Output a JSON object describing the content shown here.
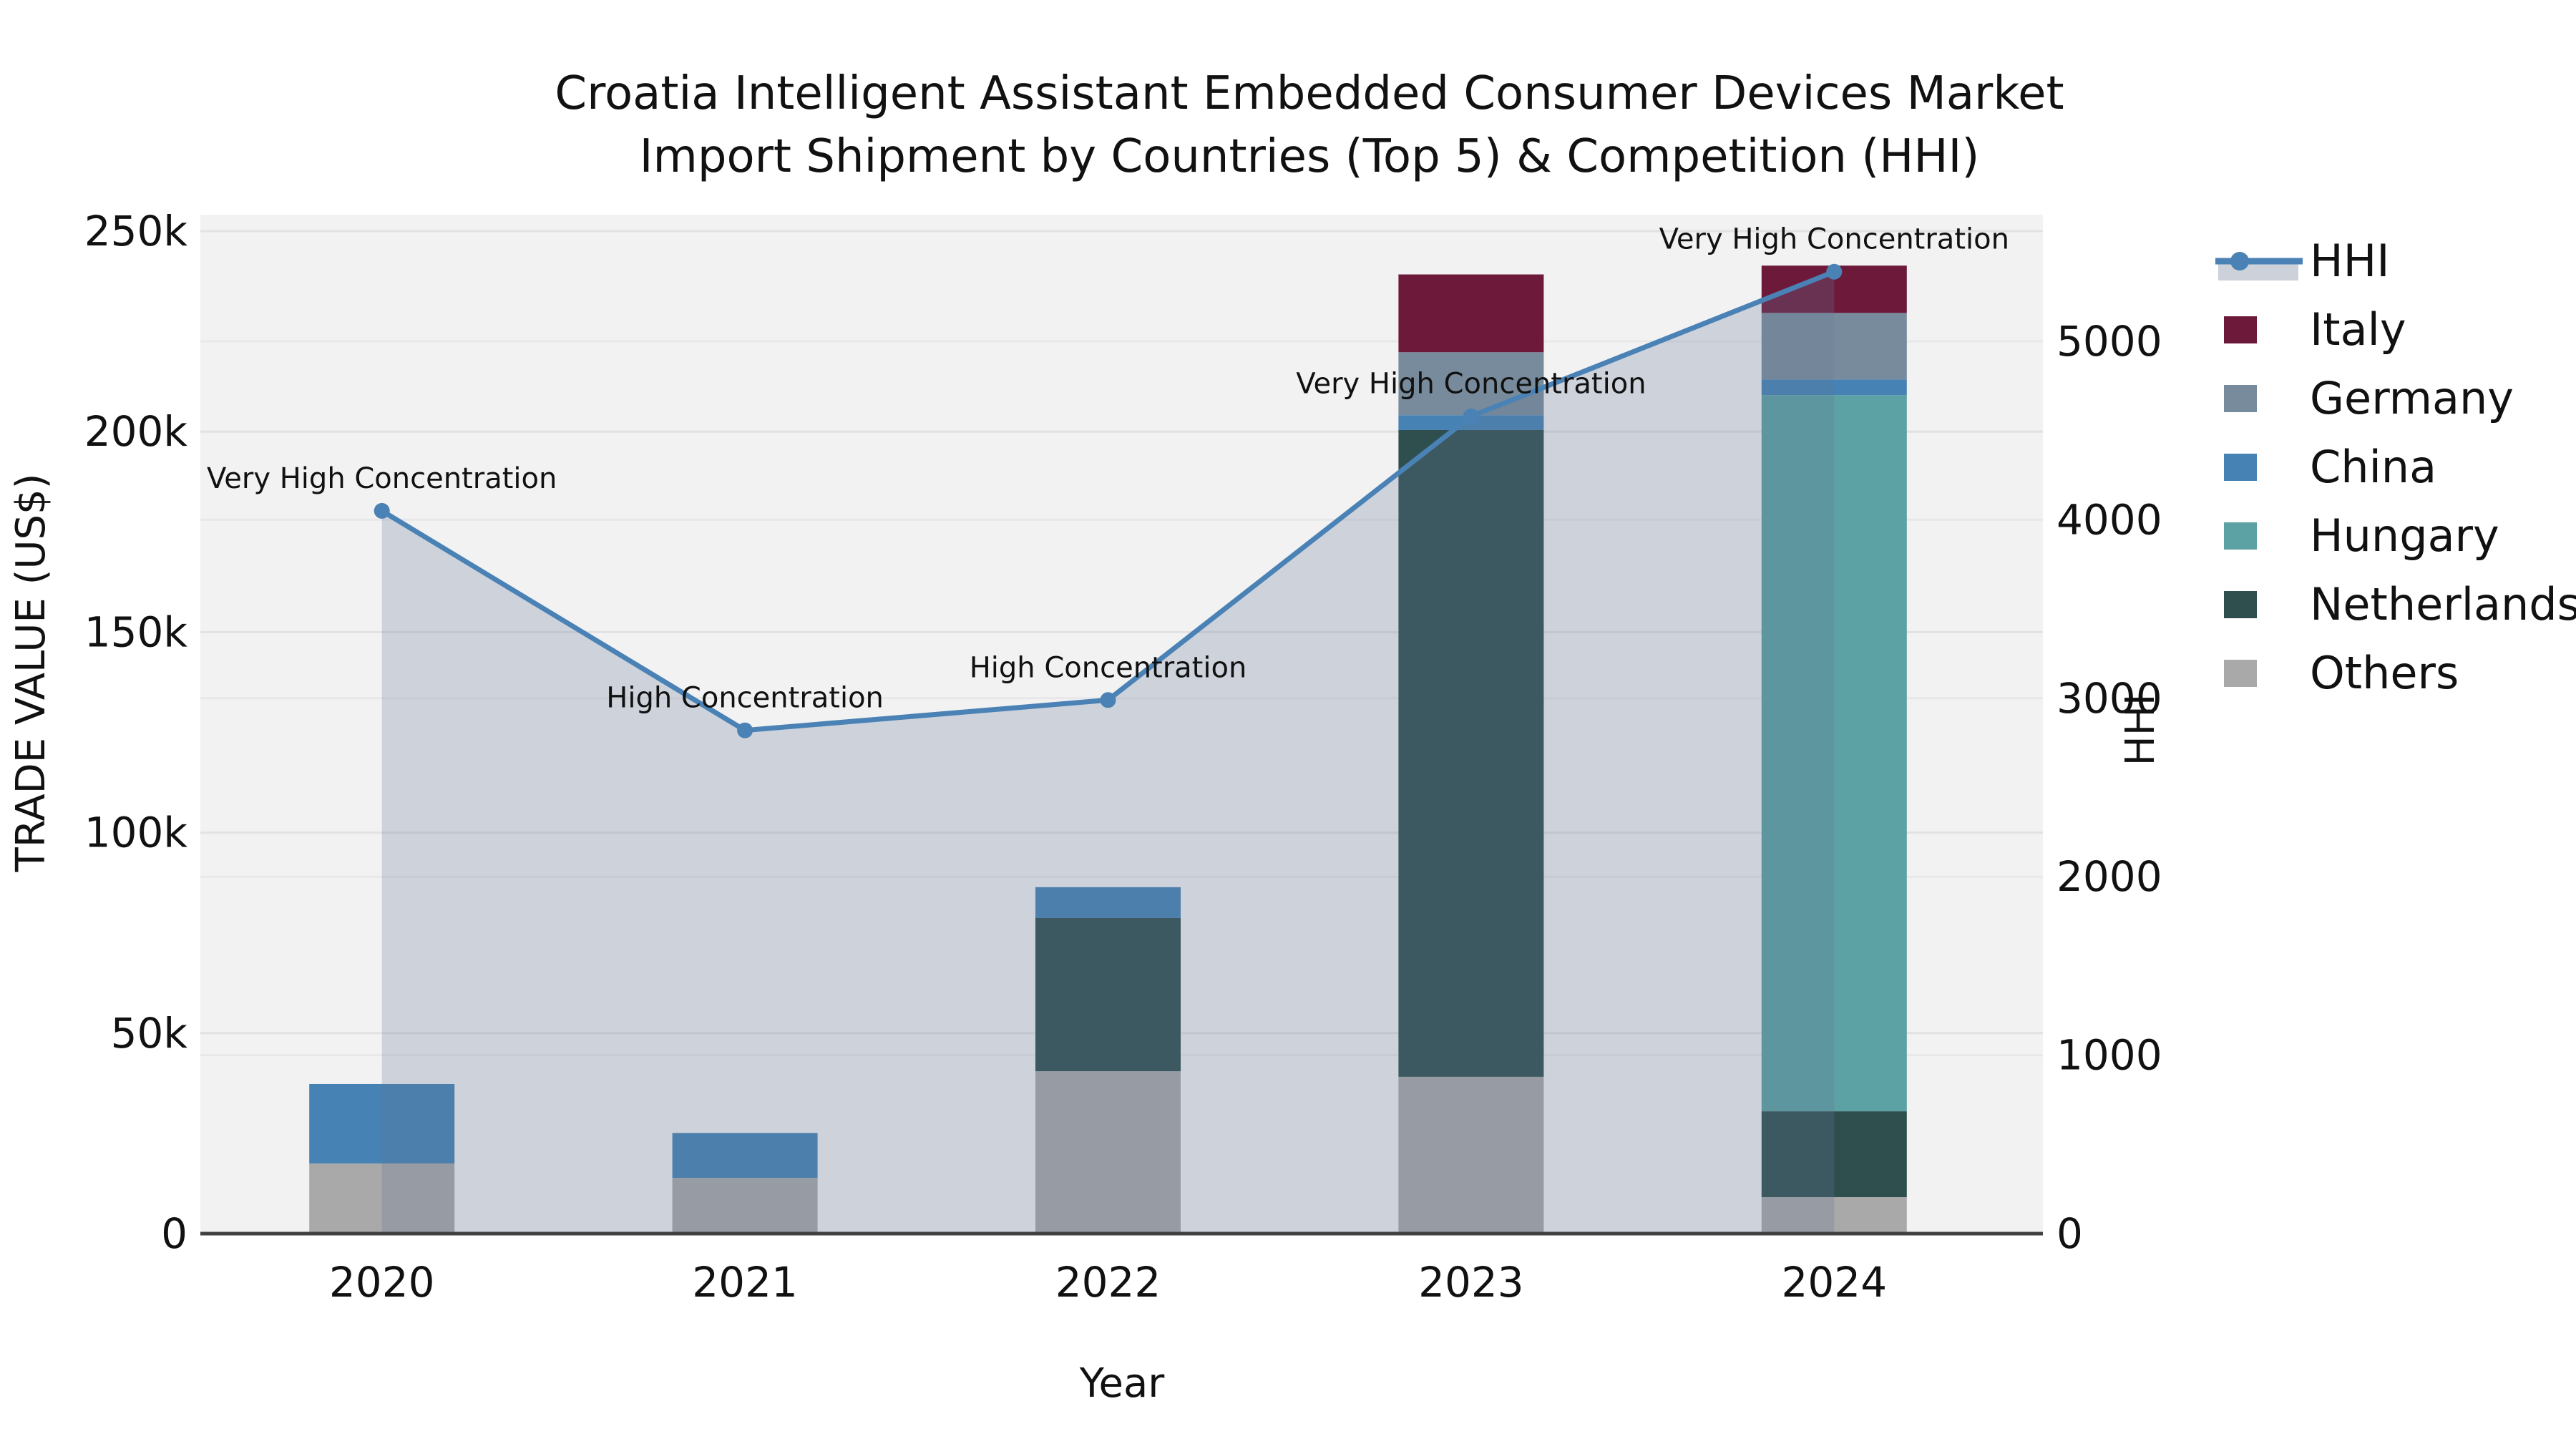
{
  "title": {
    "line1": "Croatia Intelligent Assistant Embedded Consumer Devices Market",
    "line2": "Import Shipment by Countries (Top 5) & Competition (HHI)"
  },
  "axes": {
    "x": {
      "label": "Year",
      "ticks": [
        "2020",
        "2021",
        "2022",
        "2023",
        "2024"
      ]
    },
    "y_left": {
      "label": "TRADE VALUE (US$)",
      "ticks": [
        "0",
        "50k",
        "100k",
        "150k",
        "200k",
        "250k"
      ],
      "tick_values": [
        0,
        50000,
        100000,
        150000,
        200000,
        250000
      ],
      "max": 250000
    },
    "y_right": {
      "label": "HHI",
      "ticks": [
        "0",
        "1000",
        "2000",
        "3000",
        "4000",
        "5000"
      ],
      "tick_values": [
        0,
        1000,
        2000,
        3000,
        4000,
        5000
      ],
      "max": 5000
    }
  },
  "legend": [
    {
      "label": "HHI",
      "type": "line",
      "color": "#4a82b6",
      "band_color": "#ccd1da"
    },
    {
      "label": "Italy",
      "type": "swatch",
      "color": "#6d1a3a"
    },
    {
      "label": "Germany",
      "type": "swatch",
      "color": "#788b9c"
    },
    {
      "label": "China",
      "type": "swatch",
      "color": "#4682b4"
    },
    {
      "label": "Hungary",
      "type": "swatch",
      "color": "#5ca1a3"
    },
    {
      "label": "Netherlands",
      "type": "swatch",
      "color": "#2f4f4f"
    },
    {
      "label": "Others",
      "type": "swatch",
      "color": "#a9a9a9"
    }
  ],
  "colors": {
    "plot_bg": "#f2f2f3",
    "grid_primary": "#e2e2e4",
    "grid_secondary": "#e8e8ea",
    "axis_line": "#404040",
    "hhi_line": "#4a82b6",
    "hhi_area_fill": "rgba(100,120,150,0.26)",
    "annotation_text": "#111111"
  },
  "chart_data": {
    "type": [
      "stacked-bar",
      "line-area"
    ],
    "categories": [
      "2020",
      "2021",
      "2022",
      "2023",
      "2024"
    ],
    "xlabel": "Year",
    "ylabel_left": "TRADE VALUE (US$)",
    "ylabel_right": "HHI",
    "ylim_left": [
      0,
      250000
    ],
    "ylim_right": [
      0,
      5000
    ],
    "grid": true,
    "legend_position": "outside-right",
    "stack_order_bottom_to_top": [
      "Others",
      "Netherlands",
      "Hungary",
      "China",
      "Germany",
      "Italy"
    ],
    "series": [
      {
        "name": "Italy",
        "color": "#6d1a3a",
        "values": [
          0,
          0,
          0,
          19400,
          11800
        ]
      },
      {
        "name": "Germany",
        "color": "#788b9c",
        "values": [
          0,
          0,
          0,
          15700,
          16600
        ]
      },
      {
        "name": "China",
        "color": "#4682b4",
        "values": [
          19800,
          11200,
          7700,
          3700,
          3900
        ]
      },
      {
        "name": "Hungary",
        "color": "#5ca1a3",
        "values": [
          0,
          0,
          0,
          0,
          178600
        ]
      },
      {
        "name": "Netherlands",
        "color": "#2f4f4f",
        "values": [
          0,
          0,
          38200,
          161300,
          21400
        ]
      },
      {
        "name": "Others",
        "color": "#a9a9a9",
        "values": [
          17500,
          13900,
          40500,
          39100,
          9100
        ]
      }
    ],
    "bar_totals": [
      37300,
      25100,
      86400,
      239200,
      241400
    ],
    "hhi_series": {
      "name": "HHI",
      "values": [
        4050,
        2820,
        2990,
        4580,
        5390
      ],
      "point_labels": [
        "Very High Concentration",
        "High Concentration",
        "High Concentration",
        "Very High Concentration",
        "Very High Concentration"
      ]
    }
  }
}
